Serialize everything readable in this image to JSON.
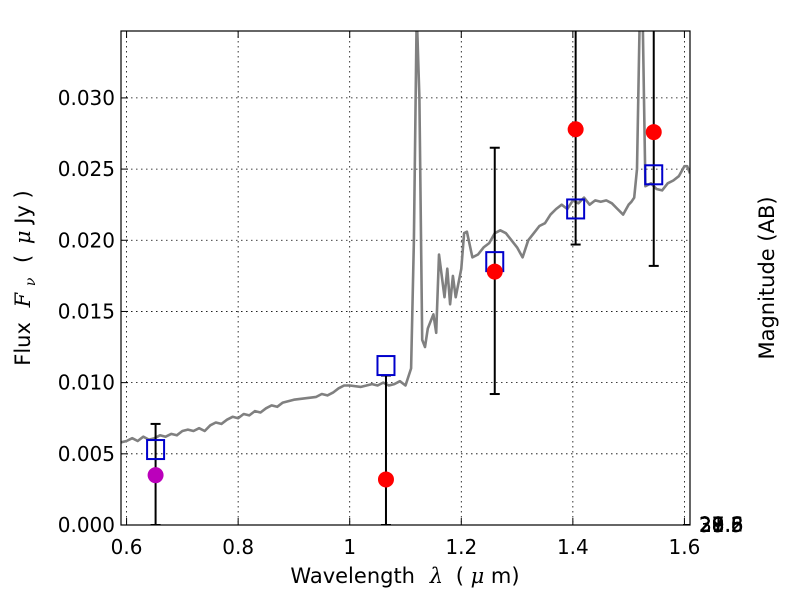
{
  "chart_data": {
    "type": "scatter",
    "xlabel_text": "Wavelength",
    "xlabel_symbol": "λ",
    "xlabel_unit_open": "(",
    "xlabel_unit_mu": "μ",
    "xlabel_unit_rest": "m)",
    "ylabel_text": "Flux",
    "ylabel_symbol": "F",
    "ylabel_sub": "ν",
    "ylabel_unit_open": "(",
    "ylabel_unit_mu": "μ",
    "ylabel_unit_rest": "Jy )",
    "y2label": "Magnitude (AB)",
    "xlim": [
      0.59,
      1.61
    ],
    "ylim": [
      0.0,
      0.0347
    ],
    "grid": true,
    "x_ticks": [
      0.6,
      0.8,
      1.0,
      1.2,
      1.4,
      1.6
    ],
    "x_tick_labels": [
      "0.6",
      "0.8",
      "1",
      "1.2",
      "1.4",
      "1.6"
    ],
    "y_ticks": [
      0.0,
      0.005,
      0.01,
      0.015,
      0.02,
      0.025,
      0.03
    ],
    "y_tick_labels": [
      "0.000",
      "0.005",
      "0.010",
      "0.015",
      "0.020",
      "0.025",
      "0.030"
    ],
    "mag_ticks": [
      {
        "mag": 27.6,
        "label": "27.6"
      },
      {
        "mag": 27.8,
        "label": "27.8"
      },
      {
        "mag": 28.0,
        "label": "28"
      },
      {
        "mag": 28.2,
        "label": "28.2"
      },
      {
        "mag": 28.5,
        "label": "28.5"
      },
      {
        "mag": 29.0,
        "label": "29"
      },
      {
        "mag": 29.5,
        "label": "29.5"
      },
      {
        "mag": 30.0,
        "label": "30"
      },
      {
        "mag": 31.0,
        "label": "31"
      }
    ],
    "model_color": "#808080",
    "model_spectrum": {
      "x": [
        0.59,
        0.6,
        0.61,
        0.62,
        0.63,
        0.64,
        0.65,
        0.66,
        0.67,
        0.68,
        0.69,
        0.7,
        0.71,
        0.72,
        0.73,
        0.74,
        0.75,
        0.76,
        0.77,
        0.78,
        0.79,
        0.8,
        0.81,
        0.82,
        0.83,
        0.84,
        0.85,
        0.86,
        0.87,
        0.88,
        0.9,
        0.92,
        0.94,
        0.95,
        0.96,
        0.97,
        0.98,
        0.99,
        1.0,
        1.02,
        1.04,
        1.05,
        1.06,
        1.07,
        1.08,
        1.09,
        1.1,
        1.11,
        1.115,
        1.12,
        1.125,
        1.13,
        1.135,
        1.14,
        1.15,
        1.155,
        1.16,
        1.17,
        1.175,
        1.18,
        1.185,
        1.19,
        1.195,
        1.2,
        1.205,
        1.21,
        1.22,
        1.23,
        1.24,
        1.25,
        1.26,
        1.27,
        1.28,
        1.29,
        1.3,
        1.31,
        1.32,
        1.33,
        1.34,
        1.35,
        1.36,
        1.37,
        1.38,
        1.39,
        1.4,
        1.41,
        1.42,
        1.43,
        1.44,
        1.45,
        1.46,
        1.47,
        1.48,
        1.49,
        1.5,
        1.505,
        1.51,
        1.515,
        1.52,
        1.525,
        1.53,
        1.54,
        1.55,
        1.56,
        1.57,
        1.58,
        1.59,
        1.6,
        1.605,
        1.61
      ],
      "y": [
        0.0058,
        0.0059,
        0.0061,
        0.0059,
        0.0062,
        0.006,
        0.0061,
        0.0063,
        0.0062,
        0.0064,
        0.0063,
        0.0066,
        0.0067,
        0.0066,
        0.0068,
        0.0066,
        0.007,
        0.0072,
        0.0071,
        0.0074,
        0.0076,
        0.0075,
        0.0078,
        0.0077,
        0.008,
        0.0079,
        0.0082,
        0.0084,
        0.0083,
        0.0086,
        0.0088,
        0.0089,
        0.009,
        0.0092,
        0.0091,
        0.0093,
        0.0096,
        0.0098,
        0.0098,
        0.0097,
        0.0099,
        0.0098,
        0.01,
        0.0098,
        0.0099,
        0.0101,
        0.0098,
        0.011,
        0.02,
        0.036,
        0.03,
        0.013,
        0.0125,
        0.0138,
        0.0148,
        0.0135,
        0.019,
        0.016,
        0.018,
        0.0155,
        0.0175,
        0.016,
        0.017,
        0.018,
        0.0205,
        0.0206,
        0.0188,
        0.019,
        0.0195,
        0.0198,
        0.0205,
        0.0207,
        0.0205,
        0.02,
        0.0195,
        0.0188,
        0.02,
        0.0205,
        0.021,
        0.0212,
        0.0218,
        0.0222,
        0.0225,
        0.0222,
        0.0228,
        0.0226,
        0.023,
        0.0225,
        0.0228,
        0.0227,
        0.0228,
        0.0226,
        0.0222,
        0.0218,
        0.0225,
        0.0227,
        0.023,
        0.025,
        0.036,
        0.036,
        0.0238,
        0.024,
        0.0236,
        0.0235,
        0.024,
        0.0242,
        0.0245,
        0.0252,
        0.0252,
        0.0247
      ]
    },
    "observed_points": [
      {
        "x": 0.652,
        "y": 0.0035,
        "color": "#bb00bb",
        "err_lo": 0.0,
        "err_hi": 0.0071
      },
      {
        "x": 1.065,
        "y": 0.0032,
        "color": "#ff0000",
        "err_lo": 0.0,
        "err_hi": 0.0105
      },
      {
        "x": 1.26,
        "y": 0.0178,
        "color": "#ff0000",
        "err_lo": 0.0092,
        "err_hi": 0.0265
      },
      {
        "x": 1.405,
        "y": 0.0278,
        "color": "#ff0000",
        "err_lo": 0.0197,
        "err_hi": 0.036
      },
      {
        "x": 1.545,
        "y": 0.0276,
        "color": "#ff0000",
        "err_lo": 0.0182,
        "err_hi": 0.036
      }
    ],
    "model_points": {
      "color": "#0000cc",
      "x": [
        0.652,
        1.065,
        1.26,
        1.405,
        1.545
      ],
      "y": [
        0.0053,
        0.0112,
        0.0185,
        0.0222,
        0.0246
      ]
    }
  }
}
